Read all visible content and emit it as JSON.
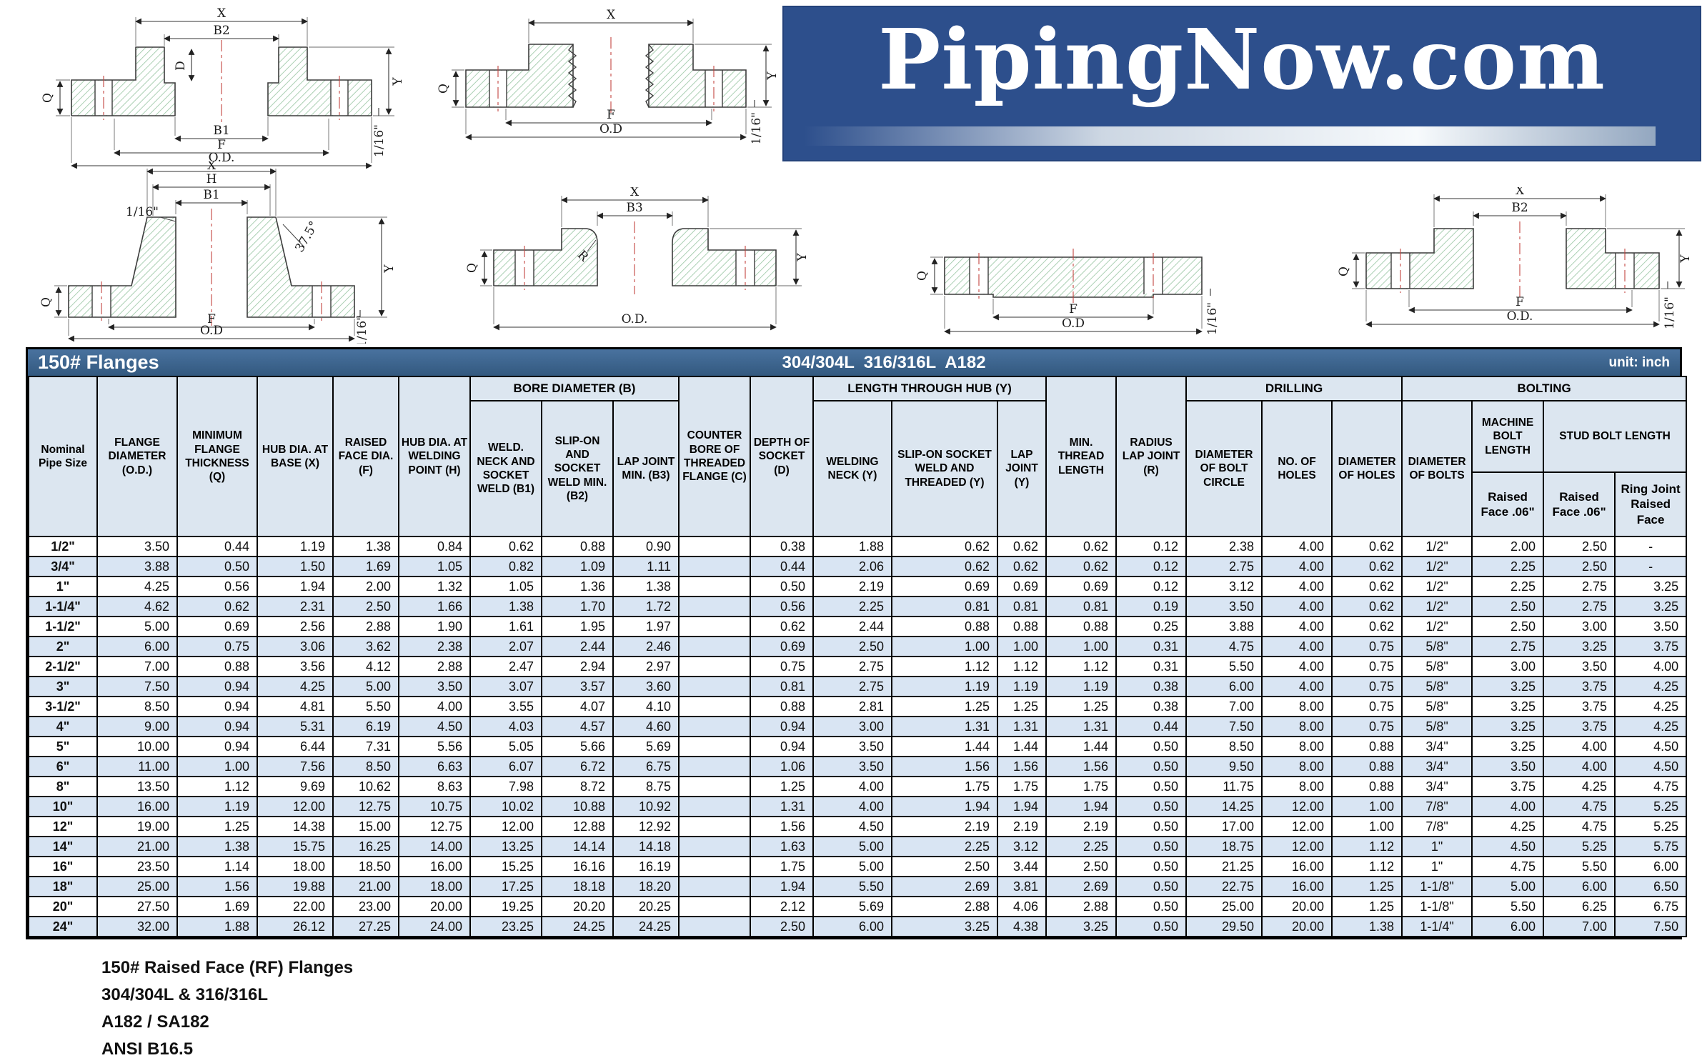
{
  "logo": {
    "text": "PipingNow.com"
  },
  "title_bar": {
    "left": "150# Flanges",
    "center": "304/304L  316/316L  A182",
    "right": "unit: inch"
  },
  "table": {
    "headers": {
      "nominal": "Nominal Pipe Size",
      "flange_dia": "FLANGE DIAMETER (O.D.)",
      "min_thk": "MINIMUM FLANGE THICKNESS (Q)",
      "hub_base": "HUB DIA. AT BASE (X)",
      "raised_face": "RAISED FACE DIA. (F)",
      "hub_weld": "HUB DIA. AT WELDING POINT (H)",
      "bore_group": "BORE DIAMETER (B)",
      "b1": "WELD. NECK AND SOCKET WELD (B1)",
      "b2": "SLIP-ON AND SOCKET WELD MIN. (B2)",
      "b3": "LAP JOINT MIN. (B3)",
      "counter_bore": "COUNTER BORE OF THREADED FLANGE (C)",
      "depth_socket": "DEPTH OF SOCKET (D)",
      "length_group": "LENGTH THROUGH HUB (Y)",
      "weld_neck_y": "WELDING NECK (Y)",
      "slip_on_y": "SLIP-ON SOCKET WELD AND THREADED (Y)",
      "lap_joint_y": "LAP JOINT (Y)",
      "min_thread": "MIN. THREAD LENGTH",
      "radius_lap": "RADIUS LAP JOINT (R)",
      "drilling_group": "DRILLING",
      "bolt_circle": "DIAMETER OF BOLT CIRCLE",
      "no_holes": "NO. OF HOLES",
      "dia_holes": "DIAMETER OF HOLES",
      "bolting_group": "BOLTING",
      "dia_bolts": "DIAMETER OF BOLTS",
      "machine_bolt": "MACHINE BOLT LENGTH",
      "stud_bolt": "STUD BOLT LENGTH",
      "rf_machine": "Raised Face .06\"",
      "rf_stud": "Raised Face .06\"",
      "ring_joint": "Ring Joint Raised Face"
    },
    "rows": [
      [
        "1/2\"",
        "3.50",
        "0.44",
        "1.19",
        "1.38",
        "0.84",
        "0.62",
        "0.88",
        "0.90",
        "",
        "0.38",
        "1.88",
        "0.62",
        "0.62",
        "0.62",
        "0.12",
        "2.38",
        "4.00",
        "0.62",
        "1/2\"",
        "2.00",
        "2.50",
        "-"
      ],
      [
        "3/4\"",
        "3.88",
        "0.50",
        "1.50",
        "1.69",
        "1.05",
        "0.82",
        "1.09",
        "1.11",
        "",
        "0.44",
        "2.06",
        "0.62",
        "0.62",
        "0.62",
        "0.12",
        "2.75",
        "4.00",
        "0.62",
        "1/2\"",
        "2.25",
        "2.50",
        "-"
      ],
      [
        "1\"",
        "4.25",
        "0.56",
        "1.94",
        "2.00",
        "1.32",
        "1.05",
        "1.36",
        "1.38",
        "",
        "0.50",
        "2.19",
        "0.69",
        "0.69",
        "0.69",
        "0.12",
        "3.12",
        "4.00",
        "0.62",
        "1/2\"",
        "2.25",
        "2.75",
        "3.25"
      ],
      [
        "1-1/4\"",
        "4.62",
        "0.62",
        "2.31",
        "2.50",
        "1.66",
        "1.38",
        "1.70",
        "1.72",
        "",
        "0.56",
        "2.25",
        "0.81",
        "0.81",
        "0.81",
        "0.19",
        "3.50",
        "4.00",
        "0.62",
        "1/2\"",
        "2.50",
        "2.75",
        "3.25"
      ],
      [
        "1-1/2\"",
        "5.00",
        "0.69",
        "2.56",
        "2.88",
        "1.90",
        "1.61",
        "1.95",
        "1.97",
        "",
        "0.62",
        "2.44",
        "0.88",
        "0.88",
        "0.88",
        "0.25",
        "3.88",
        "4.00",
        "0.62",
        "1/2\"",
        "2.50",
        "3.00",
        "3.50"
      ],
      [
        "2\"",
        "6.00",
        "0.75",
        "3.06",
        "3.62",
        "2.38",
        "2.07",
        "2.44",
        "2.46",
        "",
        "0.69",
        "2.50",
        "1.00",
        "1.00",
        "1.00",
        "0.31",
        "4.75",
        "4.00",
        "0.75",
        "5/8\"",
        "2.75",
        "3.25",
        "3.75"
      ],
      [
        "2-1/2\"",
        "7.00",
        "0.88",
        "3.56",
        "4.12",
        "2.88",
        "2.47",
        "2.94",
        "2.97",
        "",
        "0.75",
        "2.75",
        "1.12",
        "1.12",
        "1.12",
        "0.31",
        "5.50",
        "4.00",
        "0.75",
        "5/8\"",
        "3.00",
        "3.50",
        "4.00"
      ],
      [
        "3\"",
        "7.50",
        "0.94",
        "4.25",
        "5.00",
        "3.50",
        "3.07",
        "3.57",
        "3.60",
        "",
        "0.81",
        "2.75",
        "1.19",
        "1.19",
        "1.19",
        "0.38",
        "6.00",
        "4.00",
        "0.75",
        "5/8\"",
        "3.25",
        "3.75",
        "4.25"
      ],
      [
        "3-1/2\"",
        "8.50",
        "0.94",
        "4.81",
        "5.50",
        "4.00",
        "3.55",
        "4.07",
        "4.10",
        "",
        "0.88",
        "2.81",
        "1.25",
        "1.25",
        "1.25",
        "0.38",
        "7.00",
        "8.00",
        "0.75",
        "5/8\"",
        "3.25",
        "3.75",
        "4.25"
      ],
      [
        "4\"",
        "9.00",
        "0.94",
        "5.31",
        "6.19",
        "4.50",
        "4.03",
        "4.57",
        "4.60",
        "",
        "0.94",
        "3.00",
        "1.31",
        "1.31",
        "1.31",
        "0.44",
        "7.50",
        "8.00",
        "0.75",
        "5/8\"",
        "3.25",
        "3.75",
        "4.25"
      ],
      [
        "5\"",
        "10.00",
        "0.94",
        "6.44",
        "7.31",
        "5.56",
        "5.05",
        "5.66",
        "5.69",
        "",
        "0.94",
        "3.50",
        "1.44",
        "1.44",
        "1.44",
        "0.50",
        "8.50",
        "8.00",
        "0.88",
        "3/4\"",
        "3.25",
        "4.00",
        "4.50"
      ],
      [
        "6\"",
        "11.00",
        "1.00",
        "7.56",
        "8.50",
        "6.63",
        "6.07",
        "6.72",
        "6.75",
        "",
        "1.06",
        "3.50",
        "1.56",
        "1.56",
        "1.56",
        "0.50",
        "9.50",
        "8.00",
        "0.88",
        "3/4\"",
        "3.50",
        "4.00",
        "4.50"
      ],
      [
        "8\"",
        "13.50",
        "1.12",
        "9.69",
        "10.62",
        "8.63",
        "7.98",
        "8.72",
        "8.75",
        "",
        "1.25",
        "4.00",
        "1.75",
        "1.75",
        "1.75",
        "0.50",
        "11.75",
        "8.00",
        "0.88",
        "3/4\"",
        "3.75",
        "4.25",
        "4.75"
      ],
      [
        "10\"",
        "16.00",
        "1.19",
        "12.00",
        "12.75",
        "10.75",
        "10.02",
        "10.88",
        "10.92",
        "",
        "1.31",
        "4.00",
        "1.94",
        "1.94",
        "1.94",
        "0.50",
        "14.25",
        "12.00",
        "1.00",
        "7/8\"",
        "4.00",
        "4.75",
        "5.25"
      ],
      [
        "12\"",
        "19.00",
        "1.25",
        "14.38",
        "15.00",
        "12.75",
        "12.00",
        "12.88",
        "12.92",
        "",
        "1.56",
        "4.50",
        "2.19",
        "2.19",
        "2.19",
        "0.50",
        "17.00",
        "12.00",
        "1.00",
        "7/8\"",
        "4.25",
        "4.75",
        "5.25"
      ],
      [
        "14\"",
        "21.00",
        "1.38",
        "15.75",
        "16.25",
        "14.00",
        "13.25",
        "14.14",
        "14.18",
        "",
        "1.63",
        "5.00",
        "2.25",
        "3.12",
        "2.25",
        "0.50",
        "18.75",
        "12.00",
        "1.12",
        "1\"",
        "4.50",
        "5.25",
        "5.75"
      ],
      [
        "16\"",
        "23.50",
        "1.14",
        "18.00",
        "18.50",
        "16.00",
        "15.25",
        "16.16",
        "16.19",
        "",
        "1.75",
        "5.00",
        "2.50",
        "3.44",
        "2.50",
        "0.50",
        "21.25",
        "16.00",
        "1.12",
        "1\"",
        "4.75",
        "5.50",
        "6.00"
      ],
      [
        "18\"",
        "25.00",
        "1.56",
        "19.88",
        "21.00",
        "18.00",
        "17.25",
        "18.18",
        "18.20",
        "",
        "1.94",
        "5.50",
        "2.69",
        "3.81",
        "2.69",
        "0.50",
        "22.75",
        "16.00",
        "1.25",
        "1-1/8\"",
        "5.00",
        "6.00",
        "6.50"
      ],
      [
        "20\"",
        "27.50",
        "1.69",
        "22.00",
        "23.00",
        "20.00",
        "19.25",
        "20.20",
        "20.25",
        "",
        "2.12",
        "5.69",
        "2.88",
        "4.06",
        "2.88",
        "0.50",
        "25.00",
        "20.00",
        "1.25",
        "1-1/8\"",
        "5.50",
        "6.25",
        "6.75"
      ],
      [
        "24\"",
        "32.00",
        "1.88",
        "26.12",
        "27.25",
        "24.00",
        "23.25",
        "24.25",
        "24.25",
        "",
        "2.50",
        "6.00",
        "3.25",
        "4.38",
        "3.25",
        "0.50",
        "29.50",
        "20.00",
        "1.38",
        "1-1/4\"",
        "6.00",
        "7.00",
        "7.50"
      ]
    ]
  },
  "footer": {
    "lines": [
      "150# Raised Face (RF) Flanges",
      "304/304L & 316/316L",
      "A182 / SA182",
      "ANSI B16.5"
    ]
  },
  "drawings": {
    "socket_weld": {
      "labels": [
        "X",
        "B2",
        "D",
        "Q",
        "Y",
        "1/16\"",
        "B1",
        "F",
        "O.D."
      ]
    },
    "threaded": {
      "labels": [
        "X",
        "Q",
        "Y",
        "1/16\"",
        "F",
        "O.D"
      ]
    },
    "welding_neck": {
      "labels": [
        "X",
        "H",
        "B1",
        "1/16\"",
        "37.5°",
        "Q",
        "Y",
        "F",
        "O.D",
        "1/16\""
      ]
    },
    "lap_joint": {
      "labels": [
        "X",
        "B3",
        "Q",
        "R",
        "Y",
        "O.D."
      ]
    },
    "blind": {
      "labels": [
        "Q",
        "F",
        "O.D",
        "1/16\""
      ]
    },
    "slip_on": {
      "labels": [
        "X",
        "B2",
        "Q",
        "Y",
        "1/16\"",
        "F",
        "O.D."
      ]
    }
  },
  "colors": {
    "logo_blue": "#2d4f8c",
    "title_bar_blue": "#3a6494",
    "header_bg": "#dce6f0",
    "row_alt_bg": "#d9e5f3",
    "hatch_green": "#9cc7a6",
    "centerline_red": "#c4443f"
  }
}
